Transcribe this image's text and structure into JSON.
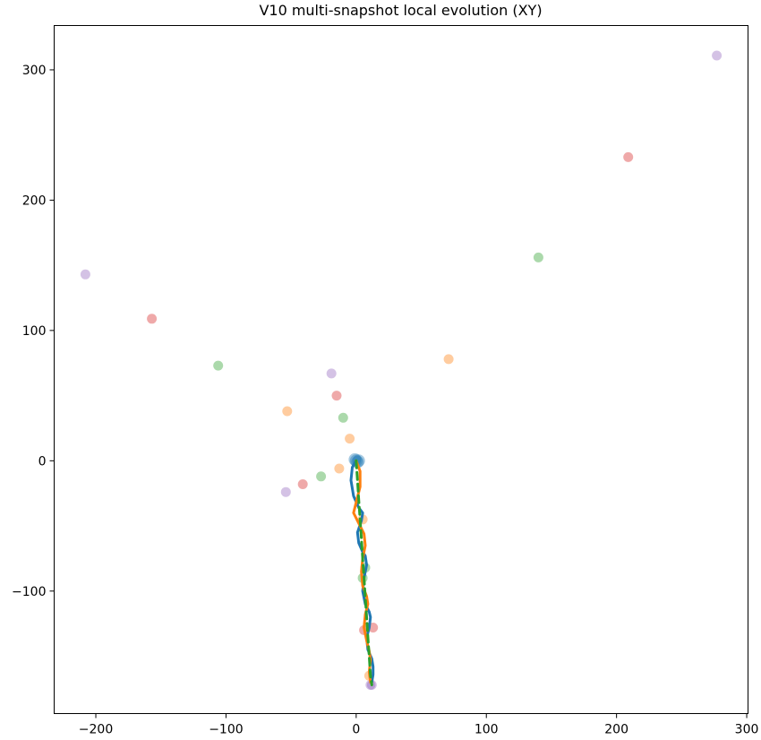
{
  "chart_data": {
    "type": "scatter",
    "title": "V10 multi-snapshot local evolution (XY)",
    "xlabel": "",
    "ylabel": "",
    "xlim": [
      -232,
      301
    ],
    "ylim": [
      -194,
      334
    ],
    "xticks": [
      -200,
      -100,
      0,
      100,
      200,
      300
    ],
    "yticks": [
      -100,
      0,
      100,
      200,
      300
    ],
    "xtick_labels": [
      "−200",
      "−100",
      "0",
      "100",
      "200",
      "300"
    ],
    "ytick_labels": [
      "−100",
      "0",
      "100",
      "200",
      "300"
    ],
    "grid": false,
    "legend": "none",
    "scatter_series": [
      {
        "color": "#1f77b4",
        "points": [
          [
            0,
            0
          ],
          [
            1,
            -1
          ],
          [
            -1,
            1
          ],
          [
            2,
            0
          ]
        ]
      },
      {
        "color": "#ff7f0e",
        "points": [
          [
            71,
            78
          ],
          [
            -53,
            38
          ],
          [
            -5,
            17
          ],
          [
            -13,
            -6
          ],
          [
            5,
            -45
          ],
          [
            10,
            -165
          ]
        ]
      },
      {
        "color": "#2ca02c",
        "points": [
          [
            140,
            156
          ],
          [
            -106,
            73
          ],
          [
            -10,
            33
          ],
          [
            -27,
            -12
          ],
          [
            7,
            -82
          ],
          [
            5,
            -90
          ]
        ]
      },
      {
        "color": "#d62728",
        "points": [
          [
            209,
            233
          ],
          [
            -157,
            109
          ],
          [
            -15,
            50
          ],
          [
            -41,
            -18
          ],
          [
            13,
            -128
          ],
          [
            6,
            -130
          ]
        ]
      },
      {
        "color": "#9467bd",
        "points": [
          [
            277,
            311
          ],
          [
            -208,
            143
          ],
          [
            -19,
            67
          ],
          [
            -54,
            -24
          ],
          [
            12,
            -172
          ],
          [
            11,
            -172
          ]
        ]
      }
    ],
    "line_series": [
      {
        "color": "#1f77b4",
        "style": "solid",
        "points": [
          [
            0,
            0
          ],
          [
            -3,
            -5
          ],
          [
            -4,
            -15
          ],
          [
            -2,
            -27
          ],
          [
            2,
            -36
          ],
          [
            5,
            -40
          ],
          [
            4,
            -46
          ],
          [
            1,
            -55
          ],
          [
            2,
            -63
          ],
          [
            5,
            -70
          ],
          [
            7,
            -73
          ],
          [
            8,
            -80
          ],
          [
            6,
            -90
          ],
          [
            5,
            -100
          ],
          [
            7,
            -110
          ],
          [
            10,
            -116
          ],
          [
            11,
            -120
          ],
          [
            10,
            -128
          ],
          [
            8,
            -136
          ],
          [
            9,
            -145
          ],
          [
            12,
            -152
          ],
          [
            13,
            -158
          ],
          [
            13,
            -164
          ],
          [
            12,
            -170
          ]
        ]
      },
      {
        "color": "#ff7f0e",
        "style": "solid",
        "points": [
          [
            0,
            0
          ],
          [
            3,
            -8
          ],
          [
            3,
            -20
          ],
          [
            0,
            -32
          ],
          [
            -2,
            -40
          ],
          [
            2,
            -48
          ],
          [
            6,
            -56
          ],
          [
            7,
            -65
          ],
          [
            5,
            -75
          ],
          [
            4,
            -85
          ],
          [
            5,
            -96
          ],
          [
            8,
            -104
          ],
          [
            9,
            -110
          ],
          [
            7,
            -118
          ],
          [
            6,
            -128
          ],
          [
            8,
            -138
          ],
          [
            10,
            -146
          ],
          [
            11,
            -153
          ],
          [
            10,
            -162
          ],
          [
            11,
            -170
          ]
        ]
      },
      {
        "color": "#2ca02c",
        "style": "dashed",
        "points": [
          [
            0,
            0
          ],
          [
            1,
            -15
          ],
          [
            2,
            -30
          ],
          [
            3,
            -45
          ],
          [
            4,
            -60
          ],
          [
            5,
            -75
          ],
          [
            6,
            -90
          ],
          [
            7,
            -105
          ],
          [
            8,
            -120
          ],
          [
            9,
            -135
          ],
          [
            10,
            -150
          ],
          [
            11,
            -165
          ],
          [
            12,
            -172
          ]
        ]
      }
    ]
  }
}
